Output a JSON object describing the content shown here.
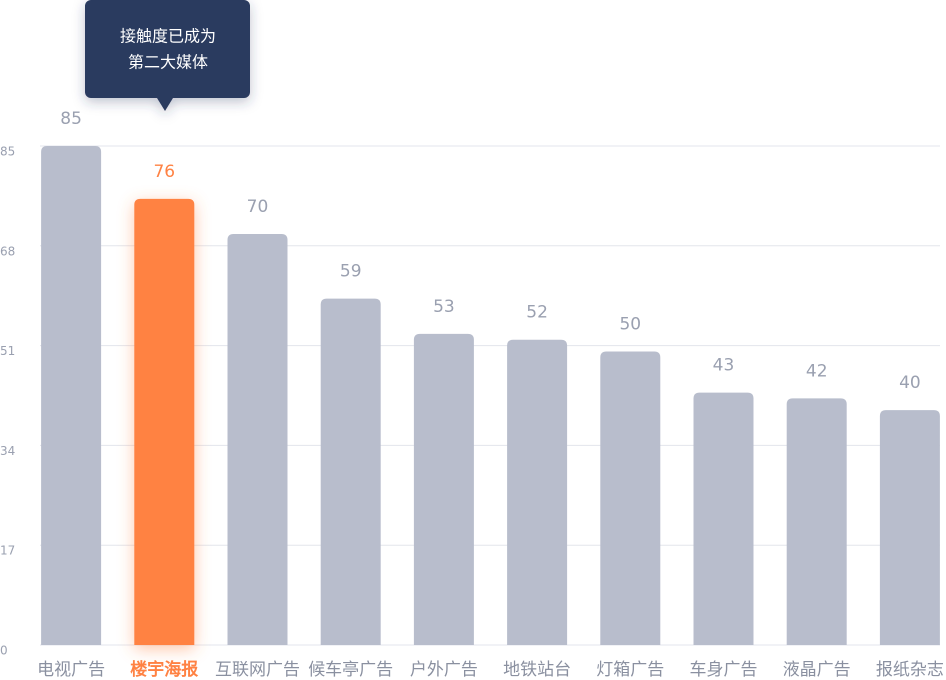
{
  "chart_data": {
    "type": "bar",
    "categories": [
      "电视广告",
      "楼宇海报",
      "互联网广告",
      "候车亭广告",
      "户外广告",
      "地铁站台",
      "灯箱广告",
      "车身广告",
      "液晶广告",
      "报纸杂志"
    ],
    "values": [
      85,
      76,
      70,
      59,
      53,
      52,
      50,
      43,
      42,
      40
    ],
    "color": "#b8bdcc",
    "highlight": 1,
    "highlight_color": "#ff8243",
    "ylim": [
      0,
      85
    ],
    "yticks": [
      0,
      17,
      34,
      51,
      68,
      85
    ],
    "grid": true,
    "annotation": {
      "lines": [
        "接触度已成为",
        "第二大媒体"
      ]
    }
  }
}
